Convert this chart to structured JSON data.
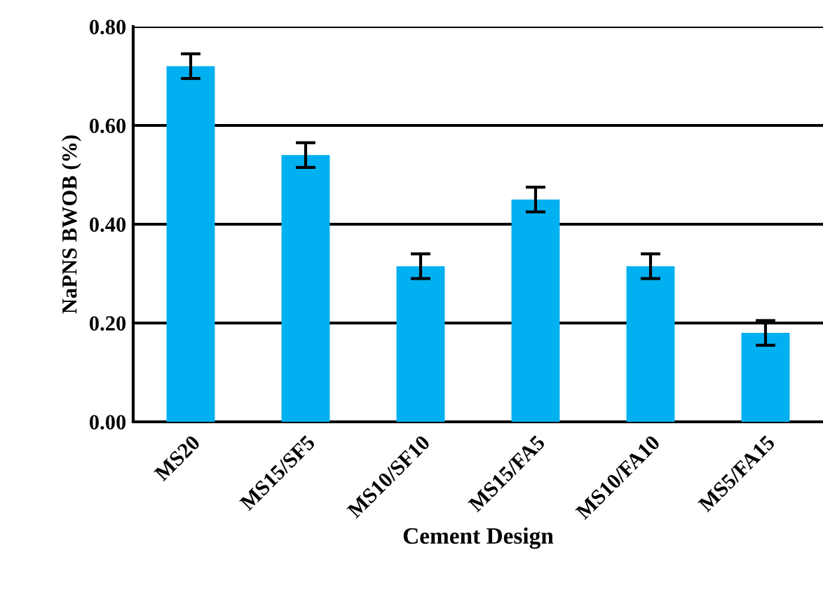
{
  "chart_data": {
    "type": "bar",
    "xlabel": "Cement Design",
    "ylabel": "NaPNS BWOB (%)",
    "categories": [
      "MS20",
      "MS15/SF5",
      "MS10/SF10",
      "MS15/FA5",
      "MS10/FA10",
      "MS5/FA15"
    ],
    "values": [
      0.72,
      0.54,
      0.315,
      0.45,
      0.315,
      0.18
    ],
    "errors": [
      0.025,
      0.025,
      0.025,
      0.025,
      0.025,
      0.025
    ],
    "color": "#00b0f0",
    "ylim": [
      0,
      0.8
    ],
    "yticks": [
      {
        "value": 0,
        "label": "0.00"
      },
      {
        "value": 0.2,
        "label": "0.20"
      },
      {
        "value": 0.4,
        "label": "0.40"
      },
      {
        "value": 0.6,
        "label": "0.60"
      },
      {
        "value": 0.8,
        "label": "0.80"
      }
    ],
    "grid": "y",
    "legend": false
  }
}
